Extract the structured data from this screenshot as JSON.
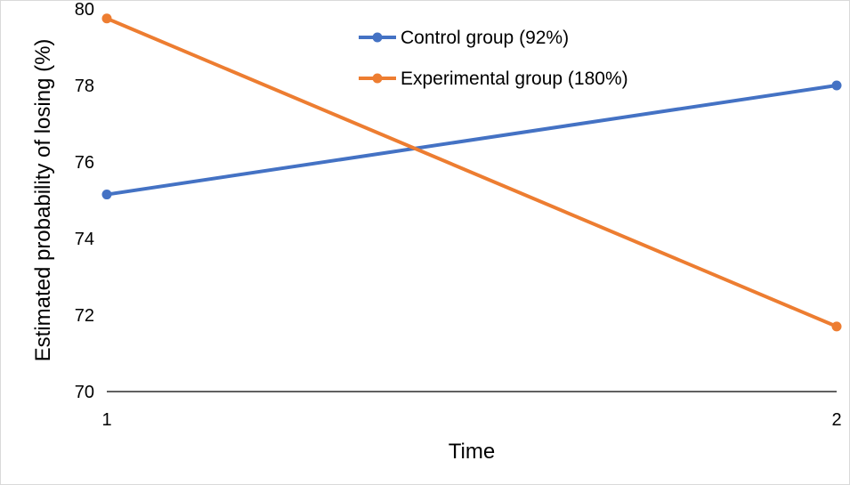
{
  "chart_data": {
    "type": "line",
    "x": [
      1,
      2
    ],
    "series": [
      {
        "name": "Control group (92%)",
        "values": [
          75.15,
          78.0
        ],
        "color": "#4472C4"
      },
      {
        "name": "Experimental group (180%)",
        "values": [
          79.75,
          71.7
        ],
        "color": "#ED7D31"
      }
    ],
    "x_ticks": [
      "1",
      "2"
    ],
    "y_ticks": [
      "70",
      "72",
      "74",
      "76",
      "78",
      "80"
    ],
    "xlabel": "Time",
    "ylabel": "Estimated probability of losing (%)",
    "ylim": [
      70,
      80
    ],
    "xlim": [
      1,
      2
    ],
    "grid": false,
    "legend_position": "top-center"
  }
}
